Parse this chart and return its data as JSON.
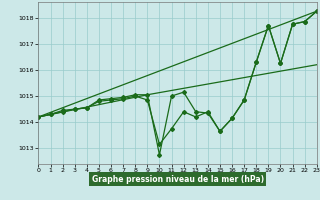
{
  "background_color": "#cce8e8",
  "grid_color": "#99cccc",
  "line_color": "#1a6b1a",
  "xlabel": "Graphe pression niveau de la mer (hPa)",
  "xlabel_bg": "#2d6b2d",
  "xlabel_fg": "#ffffff",
  "xlim": [
    0,
    23
  ],
  "ylim": [
    1012.4,
    1018.6
  ],
  "yticks": [
    1013,
    1014,
    1015,
    1016,
    1017,
    1018
  ],
  "xticks": [
    0,
    1,
    2,
    3,
    4,
    5,
    6,
    7,
    8,
    9,
    10,
    11,
    12,
    13,
    14,
    15,
    16,
    17,
    18,
    19,
    20,
    21,
    22,
    23
  ],
  "straight_line1": {
    "x": [
      0,
      23
    ],
    "y": [
      1014.2,
      1018.25
    ]
  },
  "straight_line2": {
    "x": [
      0,
      9,
      23
    ],
    "y": [
      1014.2,
      1015.05,
      1016.2
    ]
  },
  "jagged_line1": {
    "x": [
      0,
      1,
      2,
      3,
      4,
      5,
      6,
      7,
      8,
      9,
      10,
      11,
      12,
      13,
      14,
      15,
      16,
      17,
      18,
      19,
      20,
      21,
      22,
      23
    ],
    "y": [
      1014.2,
      1014.3,
      1014.45,
      1014.5,
      1014.55,
      1014.85,
      1014.9,
      1014.95,
      1015.05,
      1015.05,
      1012.75,
      1015.0,
      1015.15,
      1014.4,
      1014.35,
      1013.65,
      1014.15,
      1014.85,
      1016.3,
      1017.7,
      1016.25,
      1017.75,
      1017.85,
      1018.25
    ]
  },
  "jagged_line2": {
    "x": [
      0,
      1,
      2,
      3,
      4,
      5,
      6,
      7,
      8,
      9,
      10,
      11,
      12,
      13,
      14,
      15,
      16,
      17,
      18,
      19,
      20,
      21,
      22,
      23
    ],
    "y": [
      1014.2,
      1014.3,
      1014.4,
      1014.5,
      1014.55,
      1014.8,
      1014.85,
      1014.9,
      1015.0,
      1014.85,
      1013.15,
      1013.75,
      1014.4,
      1014.2,
      1014.4,
      1013.65,
      1014.15,
      1014.85,
      1016.3,
      1017.7,
      1016.25,
      1017.75,
      1017.85,
      1018.25
    ]
  }
}
